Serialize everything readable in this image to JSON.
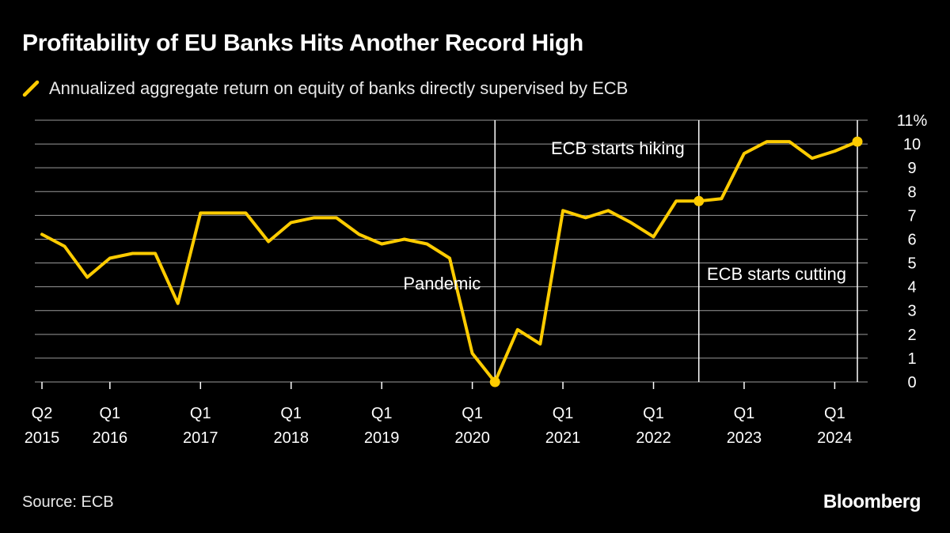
{
  "chart_data": {
    "type": "line",
    "title": "Profitability of EU Banks Hits Another Record High",
    "ylabel": "",
    "xlabel": "",
    "ylim": [
      0,
      11
    ],
    "y_ticks": [
      "0",
      "1",
      "2",
      "3",
      "4",
      "5",
      "6",
      "7",
      "8",
      "9",
      "10",
      "11%"
    ],
    "grid": true,
    "line_color": "#FFCC00",
    "series": [
      {
        "name": "Annualized aggregate return on equity of banks directly supervised by ECB",
        "x": [
          "Q2 2015",
          "Q3 2015",
          "Q4 2015",
          "Q1 2016",
          "Q2 2016",
          "Q3 2016",
          "Q4 2016",
          "Q1 2017",
          "Q2 2017",
          "Q3 2017",
          "Q4 2017",
          "Q1 2018",
          "Q2 2018",
          "Q3 2018",
          "Q4 2018",
          "Q1 2019",
          "Q2 2019",
          "Q3 2019",
          "Q4 2019",
          "Q1 2020",
          "Q2 2020",
          "Q3 2020",
          "Q4 2020",
          "Q1 2021",
          "Q2 2021",
          "Q3 2021",
          "Q4 2021",
          "Q1 2022",
          "Q2 2022",
          "Q3 2022",
          "Q4 2022",
          "Q1 2023",
          "Q2 2023",
          "Q3 2023",
          "Q4 2023",
          "Q1 2024",
          "Q2 2024"
        ],
        "values": [
          6.2,
          5.7,
          4.4,
          5.2,
          5.4,
          5.4,
          3.3,
          7.1,
          7.1,
          7.1,
          5.9,
          6.7,
          6.9,
          6.9,
          6.2,
          5.8,
          6.0,
          5.8,
          5.2,
          1.2,
          0.0,
          2.2,
          1.6,
          7.2,
          6.9,
          7.2,
          6.7,
          6.1,
          7.6,
          7.6,
          7.7,
          9.6,
          10.1,
          10.1,
          9.4,
          9.7,
          10.1
        ]
      }
    ],
    "x_ticks": [
      {
        "index": 0,
        "q": "Q2",
        "year": "2015"
      },
      {
        "index": 3,
        "q": "Q1",
        "year": "2016"
      },
      {
        "index": 7,
        "q": "Q1",
        "year": "2017"
      },
      {
        "index": 11,
        "q": "Q1",
        "year": "2018"
      },
      {
        "index": 15,
        "q": "Q1",
        "year": "2019"
      },
      {
        "index": 19,
        "q": "Q1",
        "year": "2020"
      },
      {
        "index": 23,
        "q": "Q1",
        "year": "2021"
      },
      {
        "index": 27,
        "q": "Q1",
        "year": "2022"
      },
      {
        "index": 31,
        "q": "Q1",
        "year": "2023"
      },
      {
        "index": 35,
        "q": "Q1",
        "year": "2024"
      }
    ],
    "annotations": [
      {
        "label": "Pandemic",
        "index": 20,
        "value": 0.0
      },
      {
        "label": "ECB starts hiking",
        "index": 29,
        "value": 7.6
      },
      {
        "label": "ECB starts cutting",
        "index": 36,
        "value": 10.1
      }
    ]
  },
  "source": "Source: ECB",
  "brand": "Bloomberg"
}
